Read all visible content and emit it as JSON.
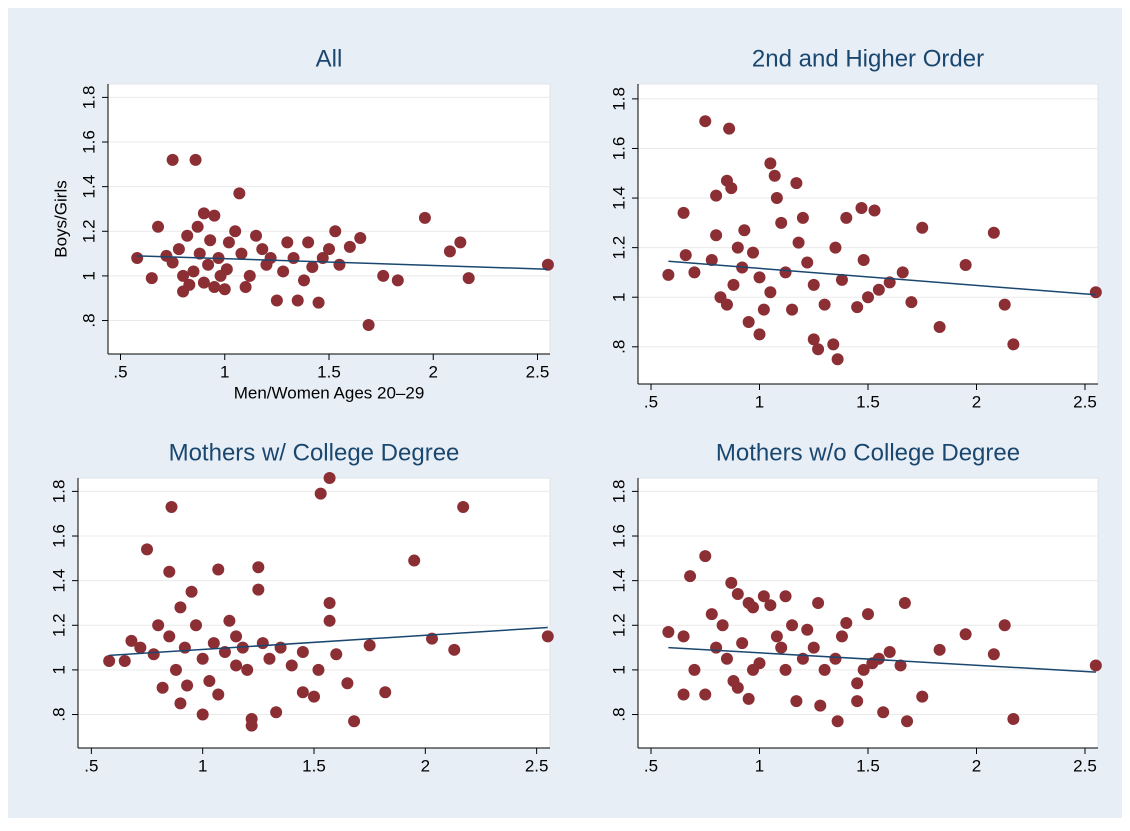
{
  "chart_data": [
    {
      "type": "scatter",
      "title": "All",
      "x_label": "Men/Women Ages 20–29",
      "y_label": "Boys/Girls",
      "xlim": [
        0.44,
        2.56
      ],
      "ylim": [
        0.65,
        1.86
      ],
      "xticks": [
        {
          "value": 0.5,
          "label": ".5"
        },
        1,
        1.5,
        2,
        2.5
      ],
      "yticks": [
        {
          "value": 0.8,
          "label": ".8"
        },
        1,
        1.2,
        1.4,
        1.6,
        1.8
      ],
      "grid": true,
      "series": [
        {
          "type": "scatter",
          "color": "#8b2f35",
          "x": [
            0.75,
            0.86,
            1.07,
            1.96,
            2.13,
            2.08,
            2.17,
            2.55,
            1.69,
            1.83,
            1.76,
            1.65,
            1.53,
            1.6,
            1.45,
            1.35,
            1.25,
            0.58,
            0.65,
            0.68,
            1.0,
            1.1,
            1.3,
            1.4,
            1.5,
            1.55,
            1.42,
            1.2,
            0.9,
            0.95,
            0.82,
            0.88,
            0.92,
            0.85,
            0.78,
            0.8,
            0.97,
            1.02,
            1.05,
            1.08,
            0.75,
            0.72,
            0.83,
            0.9,
            1.12,
            1.15,
            1.18,
            1.22,
            1.28,
            0.93,
            0.87,
            0.98,
            1.01,
            1.38,
            1.33,
            1.47,
            0.8,
            0.95
          ],
          "y": [
            1.52,
            1.52,
            1.37,
            1.26,
            1.15,
            1.11,
            0.99,
            1.05,
            0.78,
            0.98,
            1.0,
            1.17,
            1.2,
            1.13,
            0.88,
            0.89,
            0.89,
            1.08,
            0.99,
            1.22,
            0.94,
            0.95,
            1.15,
            1.15,
            1.12,
            1.05,
            1.04,
            1.05,
            1.28,
            1.27,
            1.18,
            1.1,
            1.05,
            1.02,
            1.12,
            1.0,
            1.08,
            1.15,
            1.2,
            1.1,
            1.06,
            1.09,
            0.96,
            0.97,
            1.0,
            1.18,
            1.12,
            1.08,
            1.02,
            1.16,
            1.22,
            1.0,
            1.03,
            0.98,
            1.08,
            1.08,
            0.93,
            0.95
          ]
        },
        {
          "type": "line",
          "color": "#1a476f",
          "x": [
            0.58,
            2.55
          ],
          "y": [
            1.09,
            1.03
          ]
        }
      ]
    },
    {
      "type": "scatter",
      "title": "2nd and Higher Order",
      "xlim": [
        0.44,
        2.56
      ],
      "ylim": [
        0.65,
        1.86
      ],
      "xticks": [
        {
          "value": 0.5,
          "label": ".5"
        },
        1,
        1.5,
        2,
        2.5
      ],
      "yticks": [
        {
          "value": 0.8,
          "label": ".8"
        },
        1,
        1.2,
        1.4,
        1.6,
        1.8
      ],
      "grid": true,
      "series": [
        {
          "type": "scatter",
          "color": "#8b2f35",
          "x": [
            0.75,
            0.86,
            1.05,
            1.07,
            1.17,
            0.85,
            0.87,
            0.8,
            1.08,
            1.47,
            1.53,
            1.4,
            1.75,
            2.08,
            1.2,
            1.35,
            1.1,
            0.65,
            0.66,
            0.58,
            0.7,
            1.95,
            1.48,
            1.6,
            1.66,
            1.7,
            1.83,
            2.13,
            2.17,
            2.55,
            1.36,
            1.34,
            1.25,
            1.27,
            1.0,
            0.95,
            1.02,
            1.15,
            1.3,
            1.45,
            1.5,
            1.55,
            1.38,
            0.9,
            0.92,
            0.88,
            0.82,
            0.78,
            0.97,
            1.0,
            1.12,
            1.22,
            0.85,
            0.8,
            0.93,
            1.18,
            1.25,
            1.05
          ],
          "y": [
            1.71,
            1.68,
            1.54,
            1.49,
            1.46,
            1.47,
            1.44,
            1.41,
            1.4,
            1.36,
            1.35,
            1.32,
            1.28,
            1.26,
            1.32,
            1.2,
            1.3,
            1.34,
            1.17,
            1.09,
            1.1,
            1.13,
            1.15,
            1.06,
            1.1,
            0.98,
            0.88,
            0.97,
            0.81,
            1.02,
            0.75,
            0.81,
            0.83,
            0.79,
            0.85,
            0.9,
            0.95,
            0.95,
            0.97,
            0.96,
            1.0,
            1.03,
            1.07,
            1.2,
            1.12,
            1.05,
            1.0,
            1.15,
            1.18,
            1.08,
            1.1,
            1.14,
            0.97,
            1.25,
            1.27,
            1.22,
            1.05,
            1.02
          ]
        },
        {
          "type": "line",
          "color": "#1a476f",
          "x": [
            0.58,
            2.55
          ],
          "y": [
            1.145,
            1.01
          ]
        }
      ]
    },
    {
      "type": "scatter",
      "title": "Mothers w/ College Degree",
      "xlim": [
        0.44,
        2.56
      ],
      "ylim": [
        0.65,
        1.86
      ],
      "xticks": [
        {
          "value": 0.5,
          "label": ".5"
        },
        1,
        1.5,
        2,
        2.5
      ],
      "yticks": [
        {
          "value": 0.8,
          "label": ".8"
        },
        1,
        1.2,
        1.4,
        1.6,
        1.8
      ],
      "grid": true,
      "series": [
        {
          "type": "scatter",
          "color": "#8b2f35",
          "x": [
            0.86,
            1.57,
            1.53,
            2.17,
            0.75,
            1.95,
            1.25,
            1.07,
            0.85,
            1.25,
            1.57,
            0.95,
            1.57,
            1.75,
            2.03,
            2.13,
            2.55,
            1.82,
            1.68,
            1.22,
            1.22,
            1.33,
            1.0,
            1.07,
            0.9,
            1.5,
            1.45,
            1.65,
            1.52,
            1.4,
            1.3,
            0.58,
            0.65,
            0.68,
            0.72,
            0.78,
            0.8,
            0.85,
            0.88,
            0.92,
            0.97,
            1.0,
            1.05,
            1.1,
            1.15,
            1.2,
            0.82,
            0.93,
            1.03,
            1.12,
            1.18,
            0.9,
            1.27,
            1.35,
            1.45,
            1.6,
            1.15
          ],
          "y": [
            1.73,
            1.86,
            1.79,
            1.73,
            1.54,
            1.49,
            1.46,
            1.45,
            1.44,
            1.36,
            1.3,
            1.35,
            1.22,
            1.11,
            1.14,
            1.09,
            1.15,
            0.9,
            0.77,
            0.75,
            0.78,
            0.81,
            0.8,
            0.89,
            0.85,
            0.88,
            0.9,
            0.94,
            1.0,
            1.02,
            1.05,
            1.04,
            1.04,
            1.13,
            1.1,
            1.07,
            1.2,
            1.15,
            1.0,
            1.1,
            1.2,
            1.05,
            1.12,
            1.08,
            1.15,
            1.0,
            0.92,
            0.93,
            0.95,
            1.22,
            1.1,
            1.28,
            1.12,
            1.1,
            1.08,
            1.07,
            1.02
          ]
        },
        {
          "type": "line",
          "color": "#1a476f",
          "x": [
            0.58,
            2.55
          ],
          "y": [
            1.065,
            1.19
          ]
        }
      ]
    },
    {
      "type": "scatter",
      "title": "Mothers w/o College Degree",
      "xlim": [
        0.44,
        2.56
      ],
      "ylim": [
        0.65,
        1.86
      ],
      "xticks": [
        {
          "value": 0.5,
          "label": ".5"
        },
        1,
        1.5,
        2,
        2.5
      ],
      "yticks": [
        {
          "value": 0.8,
          "label": ".8"
        },
        1,
        1.2,
        1.4,
        1.6,
        1.8
      ],
      "grid": true,
      "series": [
        {
          "type": "scatter",
          "color": "#8b2f35",
          "x": [
            0.75,
            0.68,
            0.87,
            0.9,
            1.02,
            0.95,
            1.05,
            1.27,
            1.67,
            1.12,
            0.97,
            1.4,
            2.13,
            1.95,
            1.5,
            1.83,
            2.08,
            2.55,
            2.17,
            1.68,
            1.75,
            1.57,
            1.36,
            1.45,
            1.28,
            1.17,
            0.65,
            0.58,
            0.65,
            0.7,
            0.75,
            0.8,
            0.83,
            0.85,
            0.88,
            0.92,
            0.95,
            1.0,
            1.08,
            1.12,
            1.2,
            1.25,
            1.3,
            1.35,
            1.45,
            1.48,
            1.52,
            1.6,
            1.65,
            1.55,
            0.78,
            0.9,
            1.15,
            1.22,
            1.38,
            1.1,
            0.97
          ],
          "y": [
            1.51,
            1.42,
            1.39,
            1.34,
            1.33,
            1.3,
            1.29,
            1.3,
            1.3,
            1.33,
            1.28,
            1.21,
            1.2,
            1.16,
            1.25,
            1.09,
            1.07,
            1.02,
            0.78,
            0.77,
            0.88,
            0.81,
            0.77,
            0.86,
            0.84,
            0.86,
            0.89,
            1.17,
            1.15,
            1.0,
            0.89,
            1.1,
            1.2,
            1.05,
            0.95,
            1.12,
            0.87,
            1.03,
            1.15,
            1.0,
            1.05,
            1.1,
            1.0,
            1.05,
            0.94,
            1.0,
            1.03,
            1.08,
            1.02,
            1.05,
            1.25,
            0.92,
            1.2,
            1.18,
            1.15,
            1.1,
            1.0
          ]
        },
        {
          "type": "line",
          "color": "#1a476f",
          "x": [
            0.58,
            2.55
          ],
          "y": [
            1.1,
            0.99
          ]
        }
      ]
    }
  ]
}
